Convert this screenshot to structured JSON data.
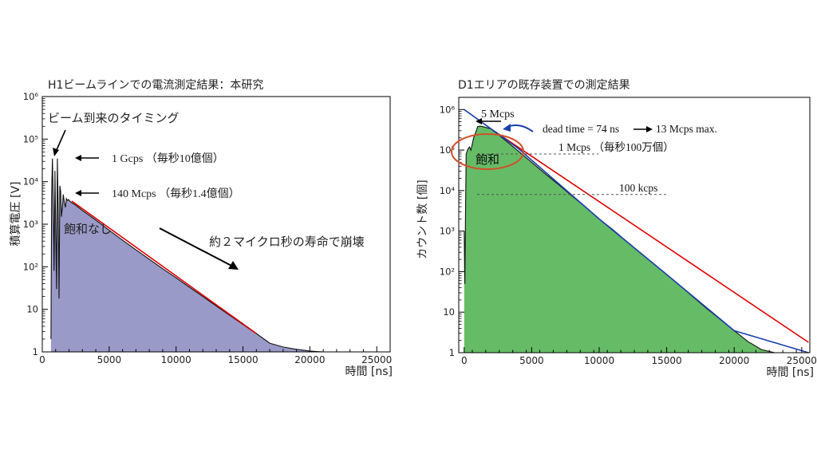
{
  "chart_data": [
    {
      "type": "area",
      "title": "H1ビームラインでの電流測定結果：本研究",
      "xlabel": "時間 [ns]",
      "ylabel": "積算電圧 [V]",
      "xlim": [
        0,
        26000
      ],
      "ylim": [
        1,
        1000000
      ],
      "yscale": "log",
      "x_ticks": [
        "0",
        "5000",
        "10000",
        "15000",
        "20000",
        "25000"
      ],
      "y_ticks": [
        "1",
        "10",
        "10²",
        "10³",
        "10⁴",
        "10⁵",
        "10⁶"
      ],
      "fill_color": "#9a9ac8",
      "fit_color": "#e00000",
      "series": [
        {
          "x": [
            650,
            700,
            760,
            820,
            880,
            950,
            1010,
            1070,
            1130,
            1190,
            1250,
            1310,
            1370,
            1430,
            1500,
            1570,
            1650,
            1730,
            1800,
            1880,
            1960,
            2050,
            2200,
            2500,
            3000,
            4000,
            5000,
            6000,
            7000,
            8000,
            9000,
            10000,
            11000,
            12000,
            13000,
            14000,
            15000,
            16000,
            17000,
            18000,
            19000,
            20000,
            20500,
            21000,
            22000,
            23000,
            24000
          ],
          "y": [
            2,
            5000,
            35000,
            3000,
            80,
            18000,
            600,
            30,
            35000,
            2000,
            18,
            8000,
            6000,
            1500,
            2500,
            5000,
            3200,
            2500,
            4000,
            3600,
            3800,
            3500,
            3200,
            2800,
            2100,
            1250,
            720,
            420,
            250,
            150,
            90,
            55,
            33,
            20,
            12,
            7.3,
            4.4,
            2.7,
            1.6,
            1.3,
            1.15,
            1.05,
            1.02,
            1.0,
            1.0,
            1.0,
            1.0
          ]
        },
        {
          "name": "fit",
          "x": [
            2200,
            16000
          ],
          "y": [
            3500,
            2.7
          ]
        }
      ],
      "annotations": [
        "ビーム到来のタイミング",
        "1 Gcps （毎秒10億個）",
        "140 Mcps （毎秒1.4億個）",
        "飽和なし",
        "約２マイクロ秒の寿命で崩壊"
      ]
    },
    {
      "type": "area",
      "title": "D1エリアの既存装置での測定結果",
      "xlabel": "時間 [ns]",
      "ylabel": "カウント数 [個]",
      "xlim": [
        -400,
        25600
      ],
      "ylim": [
        1,
        2000000
      ],
      "yscale": "log",
      "x_ticks": [
        "0",
        "5000",
        "10000",
        "15000",
        "20000",
        "25000"
      ],
      "y_ticks": [
        "1",
        "10",
        "10²",
        "10³",
        "10⁴",
        "10⁵",
        "10⁶"
      ],
      "fill_color": "#66bb66",
      "fit_color": "#e00000",
      "series": [
        {
          "x": [
            0,
            50,
            100,
            150,
            200,
            250,
            300,
            400,
            500,
            600,
            700,
            900,
            1000,
            1200,
            1500,
            2000,
            3000,
            4000,
            5000,
            6000,
            7000,
            8000,
            9000,
            10000,
            11000,
            12000,
            13000,
            14000,
            15000,
            16000,
            17000,
            18000,
            19000,
            20000,
            21000,
            22000,
            23000,
            24000,
            25000,
            25500
          ],
          "y": [
            1000,
            50,
            3000,
            80000,
            90000,
            100000,
            110000,
            120000,
            100000,
            140000,
            200000,
            300000,
            380000,
            390000,
            370000,
            330000,
            180000,
            95000,
            50000,
            26000,
            14000,
            7300,
            3900,
            2000,
            1100,
            570,
            300,
            160,
            85,
            45,
            23,
            12,
            6.5,
            3.5,
            1.9,
            1.2,
            1.0,
            1.0,
            1.0,
            1.0
          ]
        },
        {
          "name": "fit",
          "x": [
            2000,
            25500
          ],
          "y": [
            330000,
            1.8
          ]
        },
        {
          "name": "dead-time",
          "x": [
            0,
            4000,
            10000,
            15000,
            20000,
            25500
          ],
          "y": [
            1000000,
            110000,
            2000,
            85,
            3.5,
            1.0
          ]
        }
      ],
      "reference_lines": [
        {
          "label": "1 Mcps （毎秒100万個）",
          "y": 80000
        },
        {
          "label": "100 kcps",
          "y": 8000
        }
      ],
      "annotations": [
        "5 Mcps",
        "dead time = 74 ns",
        "13 Mcps max.",
        "飽和",
        "1 Mcps （毎秒100万個）",
        "100 kcps"
      ]
    }
  ]
}
